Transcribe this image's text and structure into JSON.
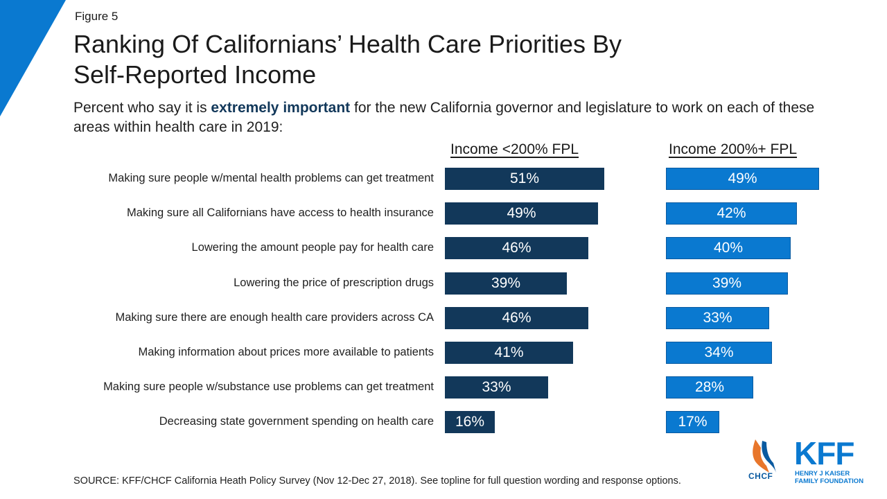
{
  "header": {
    "figure_label": "Figure 5",
    "title_line1": "Ranking Of Californians’ Health Care Priorities By",
    "title_line2": "Self-Reported Income",
    "subtitle_before": "Percent who say it is ",
    "subtitle_bold": "extremely important",
    "subtitle_after": " for the new California governor and legislature to work on each of these areas within health care in 2019:"
  },
  "colors": {
    "series_0": "#12385a",
    "series_1": "#0a79d0",
    "accent": "#0a79d0"
  },
  "chart_data": {
    "type": "bar",
    "orientation": "horizontal",
    "categories": [
      "Making sure people w/mental health problems can get treatment",
      "Making sure all Californians have access to health insurance",
      "Lowering the amount people pay for health care",
      "Lowering the price of prescription drugs",
      "Making sure there are enough health care providers across CA",
      "Making information about prices more available to patients",
      "Making sure people w/substance use problems can get treatment",
      "Decreasing state government spending on health care"
    ],
    "series": [
      {
        "name": "Income <200% FPL",
        "values": [
          51,
          49,
          46,
          39,
          46,
          41,
          33,
          16
        ]
      },
      {
        "name": "Income 200%+ FPL",
        "values": [
          49,
          42,
          40,
          39,
          33,
          34,
          28,
          17
        ]
      }
    ],
    "value_suffix": "%",
    "grid": false,
    "legend": "column headers above each panel"
  },
  "footer": {
    "source": "SOURCE: KFF/CHCF California Heath Policy Survey (Nov 12-Dec 27, 2018). See topline for full question wording and response options.",
    "logo_chcf": "CHCF",
    "logo_kff": "KFF",
    "logo_kff_sub1": "HENRY J KAISER",
    "logo_kff_sub2": "FAMILY FOUNDATION"
  }
}
